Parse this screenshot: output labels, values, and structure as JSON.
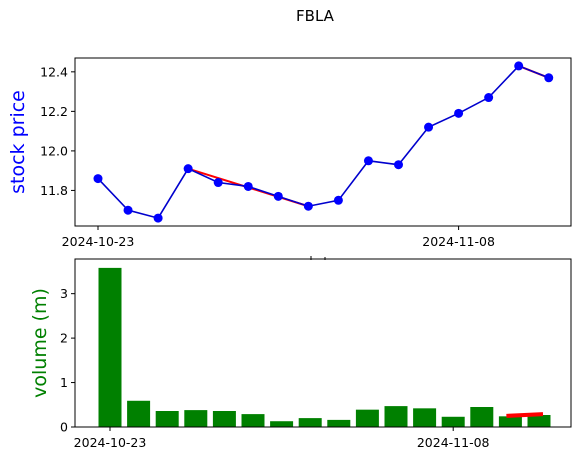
{
  "figure_title": "FBLA",
  "chart_data": [
    {
      "type": "line",
      "ylabel": "stock price",
      "ylabel_color": "#0000ff",
      "line_color": "#0000cd",
      "marker_color": "#0000ff",
      "trend_color": "#ff0000",
      "x": [
        "2024-10-23",
        "2024-10-24",
        "2024-10-25",
        "2024-10-28",
        "2024-10-29",
        "2024-10-30",
        "2024-10-31",
        "2024-11-01",
        "2024-11-04",
        "2024-11-05",
        "2024-11-06",
        "2024-11-07",
        "2024-11-08",
        "2024-11-11",
        "2024-11-12",
        "2024-11-13",
        "2024-11-14"
      ],
      "values": [
        11.86,
        11.7,
        11.66,
        11.91,
        11.84,
        11.82,
        11.77,
        11.72,
        11.75,
        11.95,
        11.93,
        12.12,
        12.19,
        12.27,
        12.43,
        12.37,
        null
      ],
      "trend_segments": [
        {
          "from_index": 3,
          "to_index": 7,
          "from_value": 11.91,
          "to_value": 11.72
        },
        {
          "from_index": 14,
          "to_index": 15,
          "from_value": 12.43,
          "to_value": 12.37
        }
      ],
      "ylim": [
        11.62,
        12.47
      ],
      "yticks": [
        11.8,
        12.0,
        12.2,
        12.4
      ],
      "ytick_labels": [
        "11.8",
        "12.0",
        "12.2",
        "12.4"
      ],
      "xtick_labels": [
        "2024-10-23",
        "2024-11-08"
      ],
      "xtick_indices": [
        0,
        12
      ]
    },
    {
      "type": "bar",
      "ylabel": "volume (m)",
      "ylabel_color": "#008000",
      "bar_color": "#008000",
      "trend_color": "#ff0000",
      "x": [
        "2024-10-23",
        "2024-10-24",
        "2024-10-25",
        "2024-10-28",
        "2024-10-29",
        "2024-10-30",
        "2024-10-31",
        "2024-11-01",
        "2024-11-04",
        "2024-11-05",
        "2024-11-06",
        "2024-11-07",
        "2024-11-08",
        "2024-11-11",
        "2024-11-12",
        "2024-11-13"
      ],
      "values": [
        3.58,
        0.59,
        0.36,
        0.38,
        0.36,
        0.29,
        0.13,
        0.2,
        0.16,
        0.39,
        0.47,
        0.42,
        0.23,
        0.45,
        0.24,
        0.27
      ],
      "trend_segments": [
        {
          "from_index": 14,
          "to_index": 15,
          "from_value": 0.25,
          "to_value": 0.29
        }
      ],
      "ylim": [
        0,
        3.78
      ],
      "yticks": [
        0,
        1,
        2,
        3
      ],
      "ytick_labels": [
        "0",
        "1",
        "2",
        "3"
      ],
      "xtick_labels": [
        "2024-10-23",
        "2024-11-08"
      ],
      "xtick_indices": [
        0,
        12
      ]
    }
  ]
}
